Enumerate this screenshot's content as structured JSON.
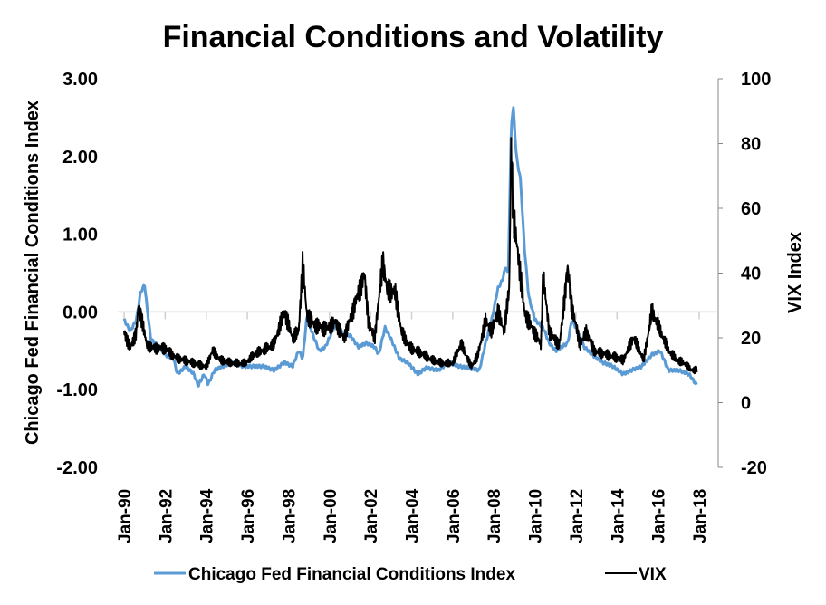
{
  "chart_data": {
    "type": "line",
    "title": "Financial Conditions and Volatility",
    "ylabel": "Chicago Fed Financial Conditions Index",
    "y2label": "VIX Index",
    "ylim": [
      -2,
      3
    ],
    "y2lim": [
      -20,
      100
    ],
    "yticks": [
      "3.00",
      "2.00",
      "1.00",
      "0.00",
      "-1.00",
      "-2.00"
    ],
    "y2ticks": [
      "100",
      "80",
      "60",
      "40",
      "20",
      "0",
      "-20"
    ],
    "xticks": [
      "Jan-90",
      "Jan-92",
      "Jan-94",
      "Jan-96",
      "Jan-98",
      "Jan-00",
      "Jan-02",
      "Jan-04",
      "Jan-06",
      "Jan-08",
      "Jan-10",
      "Jan-12",
      "Jan-14",
      "Jan-16",
      "Jan-18"
    ],
    "xlim": [
      1990,
      2018
    ],
    "legend": "bottom",
    "series": [
      {
        "name": "Chicago Fed Financial Conditions Index",
        "axis": "left",
        "color": "#5B9BD5",
        "x": [
          1990.0,
          1990.3,
          1990.6,
          1990.8,
          1991.0,
          1991.1,
          1991.3,
          1991.7,
          1992.0,
          1992.4,
          1992.6,
          1993.0,
          1993.4,
          1993.6,
          1993.9,
          1994.1,
          1994.4,
          1994.8,
          1995.3,
          1995.8,
          1996.3,
          1996.8,
          1997.3,
          1997.8,
          1998.2,
          1998.5,
          1998.7,
          1998.9,
          1999.2,
          1999.5,
          1999.8,
          2000.3,
          2000.7,
          2001.0,
          2001.4,
          2001.8,
          2002.2,
          2002.4,
          2002.7,
          2003.0,
          2003.4,
          2003.8,
          2004.3,
          2004.7,
          2005.3,
          2005.8,
          2006.3,
          2006.8,
          2007.3,
          2007.6,
          2007.9,
          2008.2,
          2008.4,
          2008.6,
          2008.7,
          2008.85,
          2008.95,
          2009.1,
          2009.3,
          2009.5,
          2009.7,
          2010.0,
          2010.4,
          2010.7,
          2011.0,
          2011.6,
          2011.8,
          2012.0,
          2012.4,
          2012.8,
          2013.3,
          2013.8,
          2014.3,
          2014.7,
          2015.2,
          2015.7,
          2016.1,
          2016.5,
          2017.0,
          2017.5,
          2017.9
        ],
        "values": [
          -0.1,
          -0.25,
          -0.1,
          0.25,
          0.35,
          0.1,
          -0.35,
          -0.45,
          -0.55,
          -0.6,
          -0.8,
          -0.7,
          -0.8,
          -0.95,
          -0.8,
          -0.93,
          -0.75,
          -0.7,
          -0.65,
          -0.7,
          -0.7,
          -0.7,
          -0.75,
          -0.65,
          -0.7,
          -0.5,
          -0.6,
          -0.05,
          -0.3,
          -0.5,
          -0.45,
          -0.15,
          -0.3,
          -0.3,
          -0.45,
          -0.4,
          -0.45,
          -0.55,
          -0.2,
          -0.35,
          -0.6,
          -0.65,
          -0.8,
          -0.72,
          -0.75,
          -0.65,
          -0.7,
          -0.72,
          -0.75,
          -0.4,
          -0.1,
          0.3,
          0.4,
          0.6,
          0.45,
          2.4,
          2.65,
          2.0,
          1.7,
          0.8,
          0.2,
          -0.1,
          -0.2,
          -0.4,
          -0.5,
          -0.4,
          -0.1,
          -0.2,
          -0.45,
          -0.55,
          -0.65,
          -0.7,
          -0.8,
          -0.75,
          -0.7,
          -0.55,
          -0.5,
          -0.75,
          -0.75,
          -0.8,
          -0.95
        ]
      },
      {
        "name": "VIX",
        "axis": "right",
        "color": "#000000",
        "x": [
          1990.0,
          1990.3,
          1990.6,
          1990.7,
          1990.9,
          1991.1,
          1991.5,
          1992.0,
          1992.5,
          1993.0,
          1993.5,
          1994.0,
          1994.3,
          1994.7,
          1995.3,
          1995.9,
          1996.4,
          1996.8,
          1997.3,
          1997.8,
          1998.2,
          1998.5,
          1998.7,
          1998.9,
          1999.3,
          1999.8,
          2000.3,
          2000.7,
          2001.2,
          2001.7,
          2001.9,
          2002.2,
          2002.6,
          2002.8,
          2003.2,
          2003.5,
          2003.9,
          2004.5,
          2005.0,
          2005.5,
          2006.0,
          2006.4,
          2006.9,
          2007.2,
          2007.6,
          2007.9,
          2008.2,
          2008.5,
          2008.75,
          2008.85,
          2008.95,
          2009.2,
          2009.5,
          2009.8,
          2010.3,
          2010.4,
          2010.7,
          2011.2,
          2011.6,
          2011.8,
          2012.2,
          2012.5,
          2012.9,
          2013.4,
          2013.9,
          2014.3,
          2014.8,
          2015.3,
          2015.7,
          2016.1,
          2016.5,
          2016.9,
          2017.3,
          2017.6,
          2017.9
        ],
        "values": [
          22,
          17,
          22,
          30,
          25,
          18,
          17,
          17,
          14,
          13,
          12,
          11,
          16,
          13,
          12,
          12,
          15,
          16,
          18,
          28,
          20,
          22,
          43,
          27,
          24,
          23,
          25,
          20,
          30,
          40,
          25,
          20,
          44,
          35,
          34,
          22,
          17,
          15,
          13,
          12,
          12,
          18,
          11,
          14,
          25,
          22,
          28,
          22,
          35,
          80,
          58,
          45,
          28,
          24,
          18,
          40,
          22,
          18,
          42,
          30,
          18,
          22,
          16,
          15,
          14,
          13,
          20,
          13,
          28,
          22,
          16,
          13,
          12,
          10,
          10
        ]
      }
    ]
  }
}
